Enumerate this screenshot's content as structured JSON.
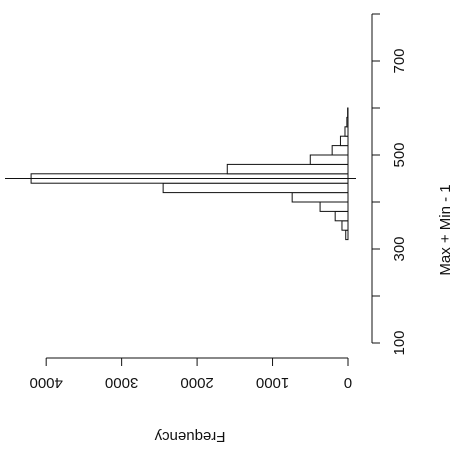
{
  "chart_data": {
    "type": "histogram",
    "orientation": "horizontal",
    "xlabel": "Frequency",
    "ylabel": "Max + Min - 1",
    "bins": [
      320,
      340,
      360,
      380,
      400,
      420,
      440,
      460,
      480,
      500,
      520,
      540,
      560,
      580,
      600
    ],
    "counts": [
      30,
      80,
      170,
      370,
      740,
      2450,
      4200,
      1600,
      500,
      210,
      100,
      40,
      15,
      5
    ],
    "color": "#ffffff",
    "xlim": [
      0,
      4400
    ],
    "xticks": [
      0,
      1000,
      2000,
      3000,
      4000
    ],
    "ylim": [
      100,
      800
    ],
    "yticks": [
      100,
      300,
      500,
      700
    ],
    "yminor_ticks": [
      200,
      400,
      600,
      800
    ],
    "reference_line": 450
  }
}
